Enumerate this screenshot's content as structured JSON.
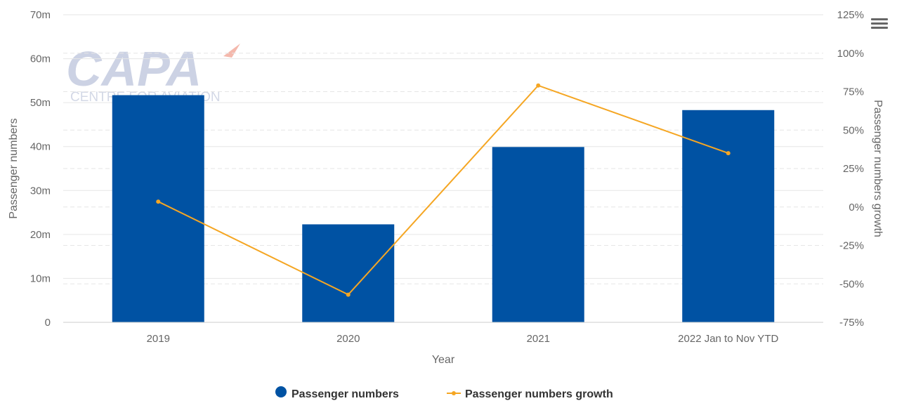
{
  "watermark": {
    "main": "CAPA",
    "sub": "CENTRE FOR AVIATION"
  },
  "menu": {
    "icon": "hamburger-menu-icon"
  },
  "colors": {
    "bar": "#0052a3",
    "line": "#f5a623",
    "grid": "#e6e6e6",
    "text": "#666666"
  },
  "chart_data": {
    "type": "bar",
    "categories": [
      "2019",
      "2020",
      "2021",
      "2022 Jan to Nov YTD"
    ],
    "xlabel": "Year",
    "ylabel": "Passenger numbers",
    "y2label": "Passenger numbers growth",
    "ylim": [
      0,
      70000000
    ],
    "y2lim": [
      -75,
      125
    ],
    "y_ticks": [
      "0",
      "10m",
      "20m",
      "30m",
      "40m",
      "50m",
      "60m",
      "70m"
    ],
    "y2_ticks": [
      "-75%",
      "-50%",
      "-25%",
      "0%",
      "25%",
      "50%",
      "75%",
      "100%",
      "125%"
    ],
    "series": [
      {
        "name": "Passenger numbers",
        "type": "bar",
        "axis": "left",
        "values": [
          51700000,
          22300000,
          39900000,
          48300000
        ]
      },
      {
        "name": "Passenger numbers growth",
        "type": "line",
        "axis": "right",
        "values": [
          3.5,
          -57,
          79,
          35
        ]
      }
    ],
    "legend": "bottom-center",
    "grid": true
  }
}
